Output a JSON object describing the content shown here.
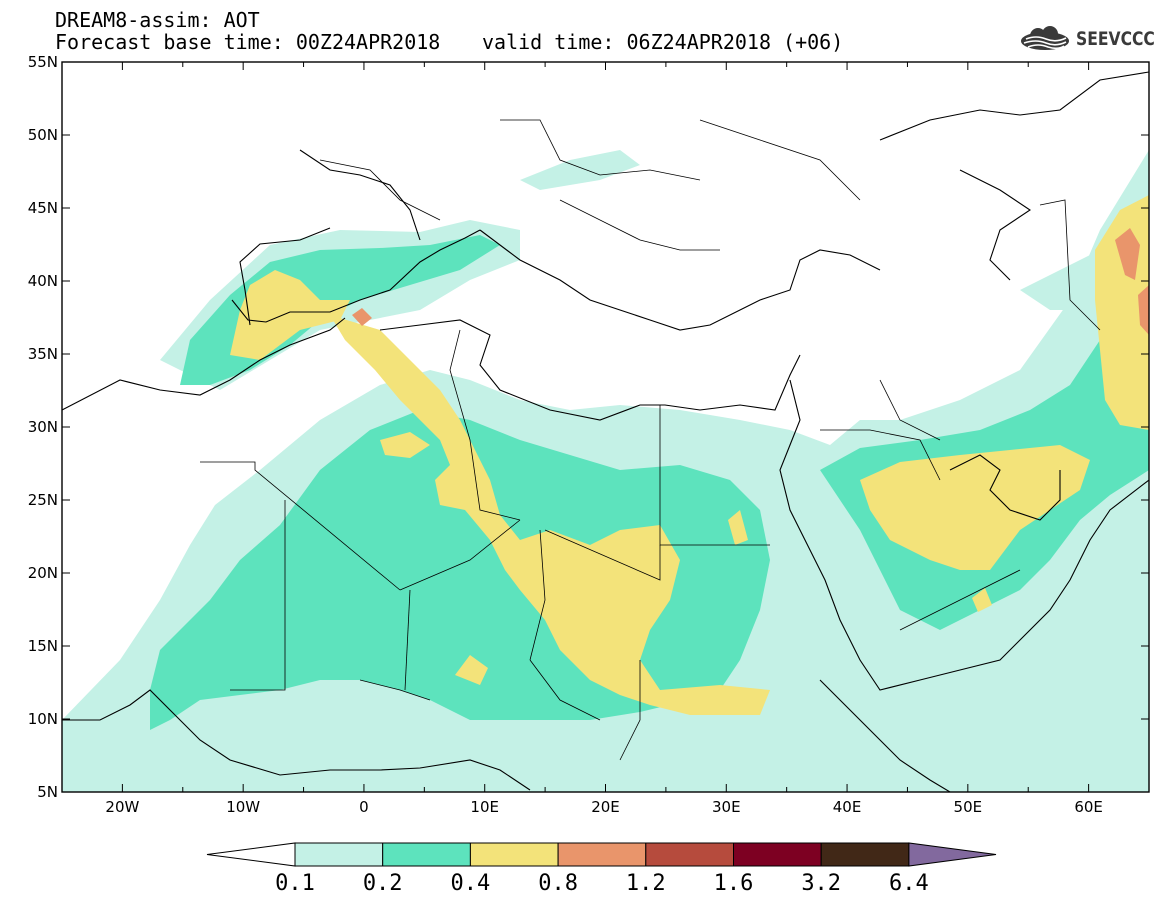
{
  "title": {
    "line1": "DREAM8-assim: AOT",
    "line2": "Forecast base time: 00Z24APR2018",
    "valid": "valid time: 06Z24APR2018 (+06)"
  },
  "logo": {
    "text": "SEEVCCC",
    "icon": "cloud-icon"
  },
  "map": {
    "lon_range": [
      -25,
      65
    ],
    "lat_range": [
      5,
      55
    ],
    "lon_ticks": [
      "20W",
      "10W",
      "0",
      "10E",
      "20E",
      "30E",
      "40E",
      "50E",
      "60E"
    ],
    "lat_ticks": [
      "55N",
      "50N",
      "45N",
      "40N",
      "35N",
      "30N",
      "25N",
      "20N",
      "15N",
      "10N",
      "5N"
    ]
  },
  "legend": {
    "levels": [
      "0.1",
      "0.2",
      "0.4",
      "0.8",
      "1.2",
      "1.6",
      "3.2",
      "6.4"
    ],
    "colors": [
      "#ffffff",
      "#c4f1e6",
      "#5de3bd",
      "#f3e37a",
      "#e9956b",
      "#b64b3d",
      "#7d0022",
      "#412817",
      "#82699e"
    ]
  },
  "palette": {
    "c01": "#c4f1e6",
    "c02": "#5de3bd",
    "c04": "#f3e37a",
    "c08": "#e9956b",
    "border": "#000000"
  }
}
